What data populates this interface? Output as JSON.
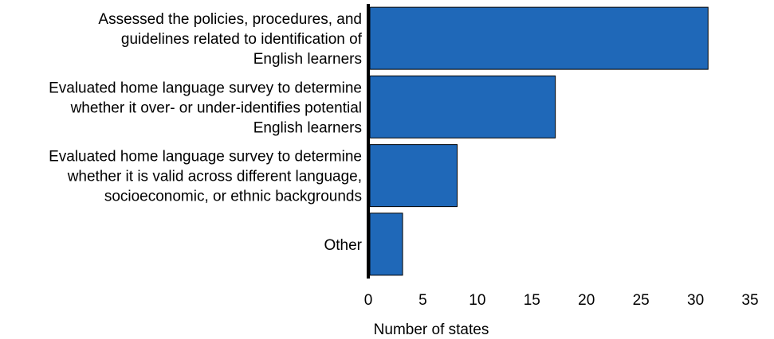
{
  "chart_data": {
    "type": "bar",
    "orientation": "horizontal",
    "categories": [
      [
        "Assessed the policies, procedures, and",
        "guidelines related to identification of",
        "English learners"
      ],
      [
        "Evaluated home language survey to determine",
        "whether it over- or under-identifies potential",
        "English learners"
      ],
      [
        "Evaluated home language survey to determine",
        "whether it is valid across different language,",
        "socioeconomic, or ethnic backgrounds"
      ],
      [
        "Other"
      ]
    ],
    "values": [
      31,
      17,
      8,
      3
    ],
    "xlabel": "Number of states",
    "ylabel": "",
    "xlim": [
      0,
      35
    ],
    "xticks": [
      0,
      5,
      10,
      15,
      20,
      25,
      30,
      35
    ],
    "grid": false,
    "legend": "none",
    "bar_color": "#1f68b8",
    "bar_edge_color": "#000000"
  }
}
